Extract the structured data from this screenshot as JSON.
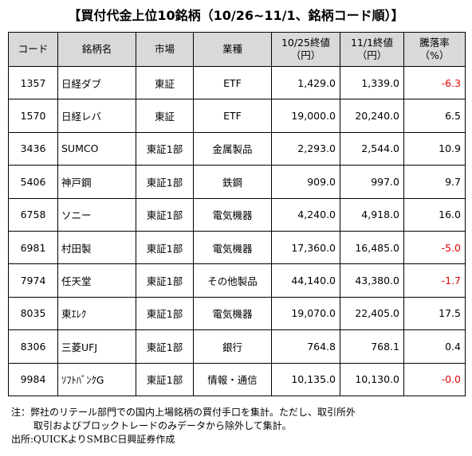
{
  "title": "【買付代金上位10銘柄（10/26~11/1、銘柄コード順）】",
  "columns": {
    "code": "コード",
    "name": "銘柄名",
    "market": "市場",
    "sector": "業種",
    "price_prev_1": "10/25終値",
    "price_prev_2": "（円）",
    "price_now_1": "11/1終値",
    "price_now_2": "（円）",
    "change_1": "騰落率",
    "change_2": "（%）"
  },
  "rows": [
    {
      "code": "1357",
      "name": "日経ダブ",
      "market": "東証",
      "sector": "ETF",
      "prev": "1,429.0",
      "now": "1,339.0",
      "change": "-6.3",
      "negative": true
    },
    {
      "code": "1570",
      "name": "日経レバ",
      "market": "東証",
      "sector": "ETF",
      "prev": "19,000.0",
      "now": "20,240.0",
      "change": "6.5",
      "negative": false
    },
    {
      "code": "3436",
      "name": "SUMCO",
      "market": "東証1部",
      "sector": "金属製品",
      "prev": "2,293.0",
      "now": "2,544.0",
      "change": "10.9",
      "negative": false
    },
    {
      "code": "5406",
      "name": "神戸鋼",
      "market": "東証1部",
      "sector": "鉄鋼",
      "prev": "909.0",
      "now": "997.0",
      "change": "9.7",
      "negative": false
    },
    {
      "code": "6758",
      "name": "ソニー",
      "market": "東証1部",
      "sector": "電気機器",
      "prev": "4,240.0",
      "now": "4,918.0",
      "change": "16.0",
      "negative": false
    },
    {
      "code": "6981",
      "name": "村田製",
      "market": "東証1部",
      "sector": "電気機器",
      "prev": "17,360.0",
      "now": "16,485.0",
      "change": "-5.0",
      "negative": true
    },
    {
      "code": "7974",
      "name": "任天堂",
      "market": "東証1部",
      "sector": "その他製品",
      "prev": "44,140.0",
      "now": "43,380.0",
      "change": "-1.7",
      "negative": true
    },
    {
      "code": "8035",
      "name": "東ｴﾚｸ",
      "market": "東証1部",
      "sector": "電気機器",
      "prev": "19,070.0",
      "now": "22,405.0",
      "change": "17.5",
      "negative": false
    },
    {
      "code": "8306",
      "name": "三菱UFJ",
      "market": "東証1部",
      "sector": "銀行",
      "prev": "764.8",
      "now": "768.1",
      "change": "0.4",
      "negative": false
    },
    {
      "code": "9984",
      "name": "ｿﾌﾄﾊﾞﾝｸG",
      "market": "東証1部",
      "sector": "情報・通信",
      "prev": "10,135.0",
      "now": "10,130.0",
      "change": "-0.0",
      "negative": true
    }
  ],
  "notes": {
    "line1": "注：弊社のリテール部門での国内上場銘柄の買付手口を集計。ただし、取引所外",
    "line2": "取引およびブロックトレードのみデータから除外して集計。",
    "line3": "出所:QUICKよりSMBC日興証券作成"
  },
  "colors": {
    "header_bg": "#d9d9d9",
    "negative": "#e00000"
  }
}
